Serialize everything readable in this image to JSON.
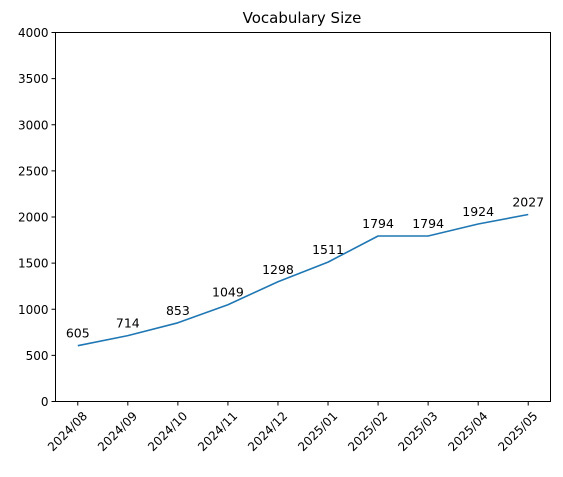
{
  "chart_data": {
    "type": "line",
    "title": "Vocabulary Size",
    "xlabel": "",
    "ylabel": "",
    "categories": [
      "2024/08",
      "2024/09",
      "2024/10",
      "2024/11",
      "2024/12",
      "2025/01",
      "2025/02",
      "2025/03",
      "2025/04",
      "2025/05"
    ],
    "series": [
      {
        "values": [
          605,
          714,
          853,
          1049,
          1298,
          1511,
          1794,
          1794,
          1924,
          2027
        ],
        "color": "#1f77b4"
      }
    ],
    "ylim": [
      0,
      4000
    ],
    "yticks": [
      0,
      500,
      1000,
      1500,
      2000,
      2500,
      3000,
      3500,
      4000
    ],
    "grid": false,
    "legend": "none",
    "data_labels": true
  }
}
